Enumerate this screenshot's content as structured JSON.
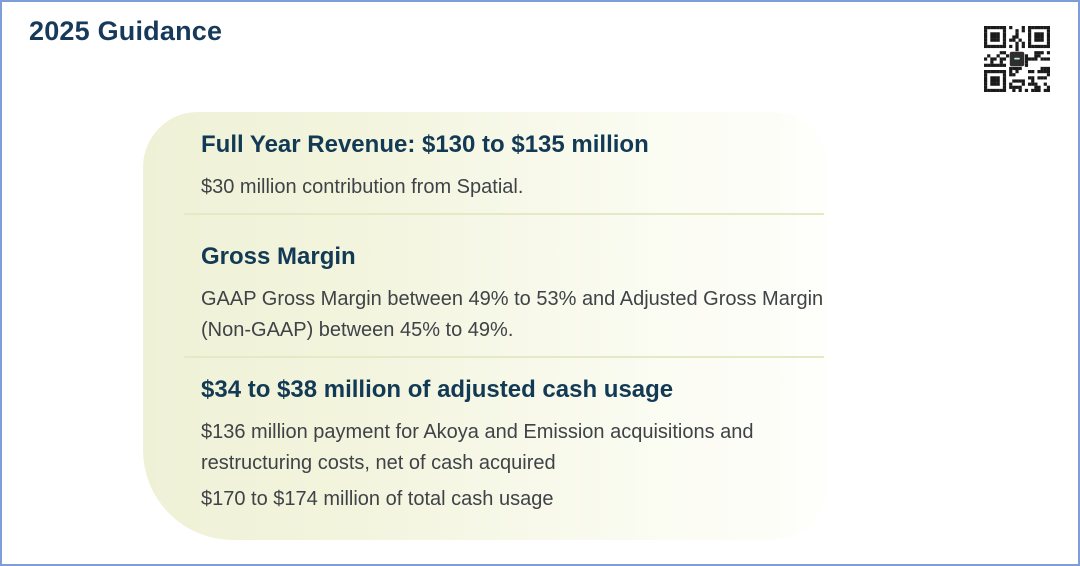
{
  "slide": {
    "title": "2025 Guidance",
    "border_color": "#7e9ed8",
    "title_color": "#17395a"
  },
  "qr": {
    "icon": "qr-code",
    "module_color": "#1a1a1a",
    "logo_color": "#2e2e2e"
  },
  "card": {
    "bg_color_left": "#eff1d7",
    "bg_color_right": "#fefefb",
    "heading_color": "#133a55",
    "body_color": "#3f4347",
    "divider_color": "#e6e9c6",
    "sections": [
      {
        "heading": "Full Year Revenue: $130 to $135 million",
        "lines": [
          "$30 million contribution from Spatial."
        ]
      },
      {
        "heading": "Gross Margin",
        "lines": [
          "GAAP Gross Margin between 49% to 53% and Adjusted Gross Margin (Non-GAAP) between 45% to 49%."
        ]
      },
      {
        "heading": "$34 to $38 million of adjusted cash usage",
        "lines": [
          "$136 million payment for Akoya and Emission acquisitions and restructuring costs, net of cash acquired",
          "$170 to $174 million of total cash usage"
        ]
      }
    ]
  }
}
